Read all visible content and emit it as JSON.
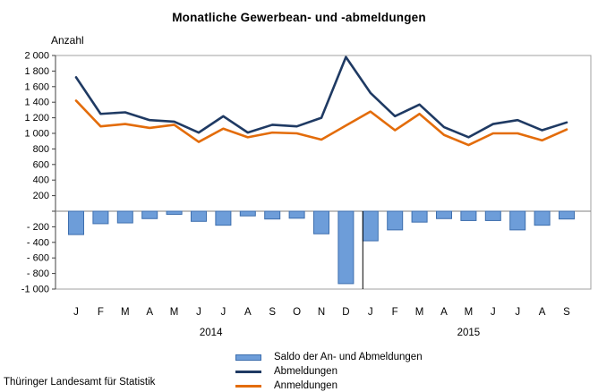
{
  "title": "Monatliche Gewerbean- und -abmeldungen",
  "y_axis_label": "Anzahl",
  "footer": "Thüringer Landesamt für Statistik",
  "legend": [
    {
      "label": "Saldo der An- und Abmeldungen",
      "type": "bar",
      "color": "#6D9DD9"
    },
    {
      "label": "Abmeldungen",
      "type": "line",
      "color": "#1F3A63"
    },
    {
      "label": "Anmeldungen",
      "type": "line",
      "color": "#E36C0A"
    }
  ],
  "chart_data": {
    "type": "combo-bar-line",
    "title": "Monatliche Gewerbean- und -abmeldungen",
    "ylabel": "Anzahl",
    "ylim": [
      -1000,
      2000
    ],
    "grid": "none",
    "legend_position": "bottom",
    "x_labels": [
      "J",
      "F",
      "M",
      "A",
      "M",
      "J",
      "J",
      "A",
      "S",
      "O",
      "N",
      "D",
      "J",
      "F",
      "M",
      "A",
      "M",
      "J",
      "J",
      "A",
      "S"
    ],
    "year_groups": [
      {
        "label": "2014",
        "start": 0,
        "count": 12
      },
      {
        "label": "2015",
        "start": 12,
        "count": 9
      }
    ],
    "y_ticks": [
      {
        "v": 2000,
        "label": "2 000"
      },
      {
        "v": 1800,
        "label": "1 800"
      },
      {
        "v": 1600,
        "label": "1 600"
      },
      {
        "v": 1400,
        "label": "1 400"
      },
      {
        "v": 1200,
        "label": "1 200"
      },
      {
        "v": 1000,
        "label": "1 000"
      },
      {
        "v": 800,
        "label": "800"
      },
      {
        "v": 600,
        "label": "600"
      },
      {
        "v": 400,
        "label": "400"
      },
      {
        "v": 200,
        "label": "200"
      },
      {
        "v": 0,
        "label": ""
      },
      {
        "v": -200,
        "label": "- 200"
      },
      {
        "v": -400,
        "label": "- 400"
      },
      {
        "v": -600,
        "label": "- 600"
      },
      {
        "v": -800,
        "label": "- 800"
      },
      {
        "v": -1000,
        "label": "-1 000"
      }
    ],
    "series": [
      {
        "name": "Saldo der An- und Abmeldungen",
        "type": "bar",
        "color": "#6D9DD9",
        "border_color": "#3E6FAE",
        "values": [
          -300,
          -160,
          -150,
          -95,
          -40,
          -130,
          -180,
          -60,
          -100,
          -90,
          -290,
          -930,
          -380,
          -240,
          -140,
          -95,
          -120,
          -120,
          -240,
          -180,
          -100
        ]
      },
      {
        "name": "Abmeldungen",
        "type": "line",
        "color": "#1F3A63",
        "values": [
          1720,
          1250,
          1270,
          1170,
          1150,
          1010,
          1220,
          1010,
          1110,
          1090,
          1200,
          1980,
          1520,
          1220,
          1370,
          1080,
          950,
          1120,
          1170,
          1040,
          1140
        ]
      },
      {
        "name": "Anmeldungen",
        "type": "line",
        "color": "#E36C0A",
        "values": [
          1420,
          1090,
          1120,
          1070,
          1110,
          890,
          1060,
          950,
          1010,
          1000,
          920,
          1100,
          1280,
          1040,
          1250,
          980,
          850,
          1000,
          1000,
          910,
          1050
        ]
      }
    ],
    "colors": {
      "frame": "#A0A0A0",
      "zero_line": "#808080",
      "axis": "#404040",
      "year_separator": "#000000"
    }
  }
}
